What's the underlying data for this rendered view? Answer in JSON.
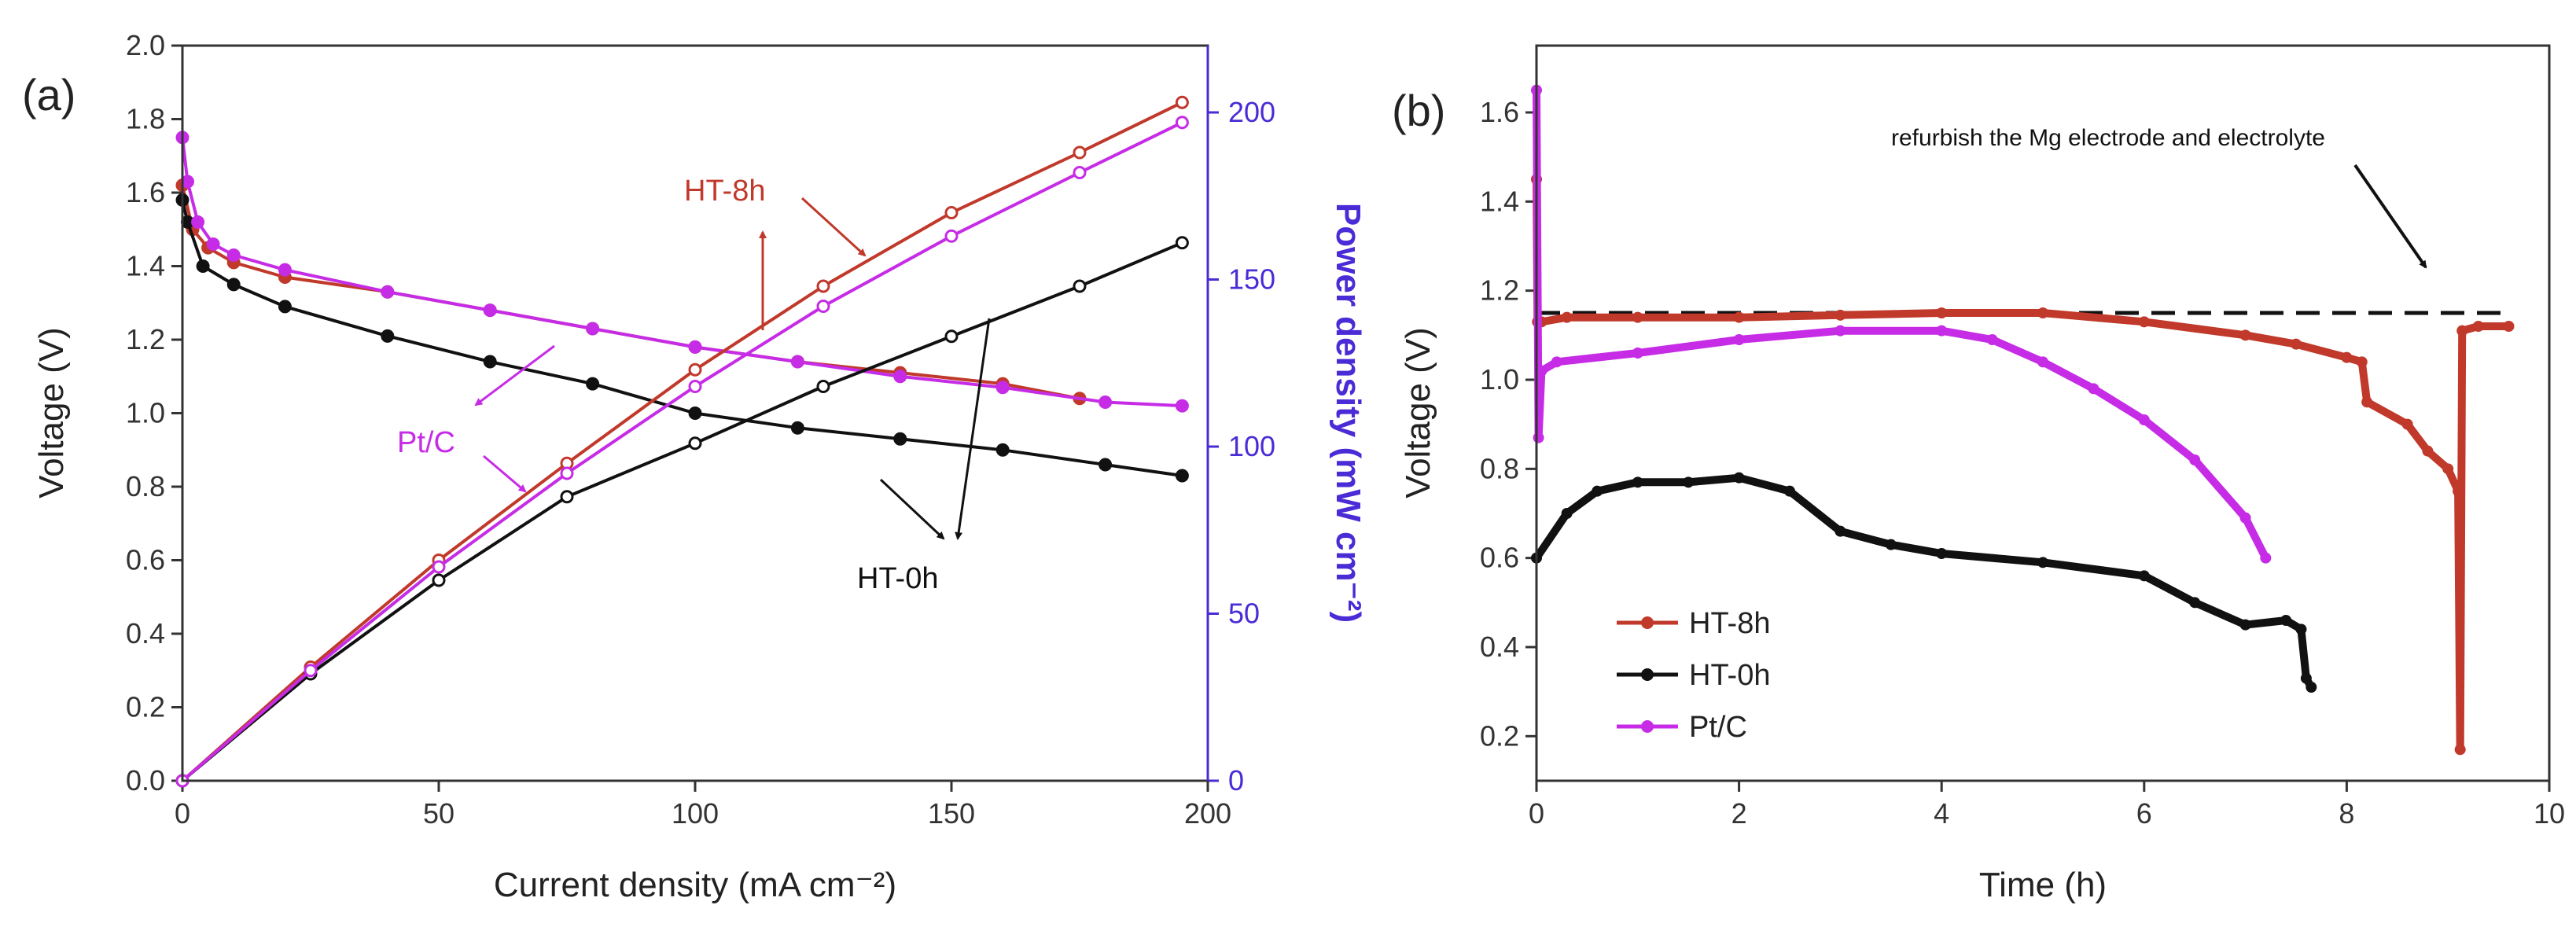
{
  "figure": {
    "colors": {
      "ht8h": "#c0392b",
      "ht0h": "#111111",
      "ptc": "#c62ce6",
      "power_axis": "#4b2bd6",
      "axis": "#333333"
    }
  },
  "chart_data": [
    {
      "type": "line",
      "panel_label": "(a)",
      "xlabel": "Current density (mA cm⁻²)",
      "ylabel": "Voltage (V)",
      "y2label": "Power density (mW cm⁻²)",
      "xlim": [
        0,
        200
      ],
      "ylim": [
        0,
        2.0
      ],
      "y2lim": [
        0,
        220
      ],
      "xticks": [
        0,
        50,
        100,
        150,
        200
      ],
      "yticks": [
        0.0,
        0.2,
        0.4,
        0.6,
        0.8,
        1.0,
        1.2,
        1.4,
        1.6,
        1.8,
        2.0
      ],
      "y2ticks": [
        0,
        50,
        100,
        150,
        200
      ],
      "xtick_labels": [
        "0",
        "50",
        "100",
        "150",
        "200"
      ],
      "ytick_labels": [
        "0.0",
        "0.2",
        "0.4",
        "0.6",
        "0.8",
        "1.0",
        "1.2",
        "1.4",
        "1.6",
        "1.8",
        "2.0"
      ],
      "y2tick_labels": [
        "0",
        "50",
        "100",
        "150",
        "200"
      ],
      "series": [
        {
          "name": "HT-8h voltage",
          "key": "ht8h",
          "axis": "left",
          "marker": "filled",
          "x": [
            0,
            2,
            5,
            10,
            20,
            40,
            60,
            80,
            100,
            120,
            140,
            160,
            175
          ],
          "y": [
            1.62,
            1.5,
            1.45,
            1.41,
            1.37,
            1.33,
            1.28,
            1.23,
            1.18,
            1.14,
            1.11,
            1.08,
            1.04
          ]
        },
        {
          "name": "HT-0h voltage",
          "key": "ht0h",
          "axis": "left",
          "marker": "filled",
          "x": [
            0,
            1,
            4,
            10,
            20,
            40,
            60,
            80,
            100,
            120,
            140,
            160,
            180,
            195
          ],
          "y": [
            1.58,
            1.52,
            1.4,
            1.35,
            1.29,
            1.21,
            1.14,
            1.08,
            1.0,
            0.96,
            0.93,
            0.9,
            0.86,
            0.83
          ]
        },
        {
          "name": "Pt/C voltage",
          "key": "ptc",
          "axis": "left",
          "marker": "filled",
          "x": [
            0,
            1,
            3,
            6,
            10,
            20,
            40,
            60,
            80,
            100,
            120,
            140,
            160,
            180,
            195
          ],
          "y": [
            1.75,
            1.63,
            1.52,
            1.46,
            1.43,
            1.39,
            1.33,
            1.28,
            1.23,
            1.18,
            1.14,
            1.1,
            1.07,
            1.03,
            1.02
          ]
        },
        {
          "name": "HT-8h power",
          "key": "ht8h",
          "axis": "right",
          "marker": "open",
          "x": [
            0,
            25,
            50,
            75,
            100,
            125,
            150,
            175,
            195
          ],
          "y": [
            0,
            34,
            66,
            95,
            123,
            148,
            170,
            188,
            203
          ]
        },
        {
          "name": "HT-0h power",
          "key": "ht0h",
          "axis": "right",
          "marker": "open",
          "x": [
            0,
            25,
            50,
            75,
            100,
            125,
            150,
            175,
            195
          ],
          "y": [
            0,
            32,
            60,
            85,
            101,
            118,
            133,
            148,
            161
          ]
        },
        {
          "name": "Pt/C power",
          "key": "ptc",
          "axis": "right",
          "marker": "open",
          "x": [
            0,
            25,
            50,
            75,
            100,
            125,
            150,
            175,
            195
          ],
          "y": [
            0,
            33,
            64,
            92,
            118,
            142,
            163,
            182,
            197
          ]
        }
      ],
      "annotations": [
        {
          "text": "HT-8h",
          "key": "ht8h"
        },
        {
          "text": "Pt/C",
          "key": "ptc"
        },
        {
          "text": "HT-0h",
          "key": "ht0h"
        }
      ]
    },
    {
      "type": "line",
      "panel_label": "(b)",
      "xlabel": "Time (h)",
      "ylabel": "Voltage (V)",
      "xlim": [
        0,
        10
      ],
      "ylim": [
        0.1,
        1.75
      ],
      "xticks": [
        0,
        2,
        4,
        6,
        8,
        10
      ],
      "yticks": [
        0.2,
        0.4,
        0.6,
        0.8,
        1.0,
        1.2,
        1.4,
        1.6
      ],
      "xtick_labels": [
        "0",
        "2",
        "4",
        "6",
        "8",
        "10"
      ],
      "ytick_labels": [
        "0.2",
        "0.4",
        "0.6",
        "0.8",
        "1.0",
        "1.2",
        "1.4",
        "1.6"
      ],
      "reference_line": {
        "y": 1.15,
        "style": "dashed"
      },
      "annotation": "refurbish the Mg electrode and electrolyte",
      "legend": [
        "HT-8h",
        "HT-0h",
        "Pt/C"
      ],
      "legend_position": "bottom-left",
      "series": [
        {
          "name": "HT-8h",
          "key": "ht8h",
          "x": [
            0,
            0.01,
            0.05,
            0.3,
            1,
            2,
            3,
            4,
            5,
            6,
            7,
            7.5,
            8,
            8.15,
            8.2,
            8.6,
            8.8,
            9.0,
            9.1,
            9.12,
            9.14,
            9.3,
            9.6
          ],
          "y": [
            1.45,
            1.13,
            1.13,
            1.14,
            1.14,
            1.14,
            1.145,
            1.15,
            1.15,
            1.13,
            1.1,
            1.08,
            1.05,
            1.04,
            0.95,
            0.9,
            0.84,
            0.8,
            0.75,
            0.17,
            1.11,
            1.12,
            1.12
          ]
        },
        {
          "name": "HT-0h",
          "key": "ht0h",
          "x": [
            0,
            0.3,
            0.6,
            1,
            1.5,
            2,
            2.5,
            3,
            3.5,
            4,
            5,
            6,
            6.5,
            7,
            7.4,
            7.55,
            7.6,
            7.65
          ],
          "y": [
            0.6,
            0.7,
            0.75,
            0.77,
            0.77,
            0.78,
            0.75,
            0.66,
            0.63,
            0.61,
            0.59,
            0.56,
            0.5,
            0.45,
            0.46,
            0.44,
            0.33,
            0.31
          ]
        },
        {
          "name": "Pt/C",
          "key": "ptc",
          "x": [
            0,
            0.02,
            0.05,
            0.2,
            1,
            2,
            3,
            4,
            4.5,
            5,
            5.5,
            6,
            6.5,
            7,
            7.2
          ],
          "y": [
            1.65,
            0.87,
            1.02,
            1.04,
            1.06,
            1.09,
            1.11,
            1.11,
            1.09,
            1.04,
            0.98,
            0.91,
            0.82,
            0.69,
            0.6
          ]
        }
      ]
    }
  ]
}
